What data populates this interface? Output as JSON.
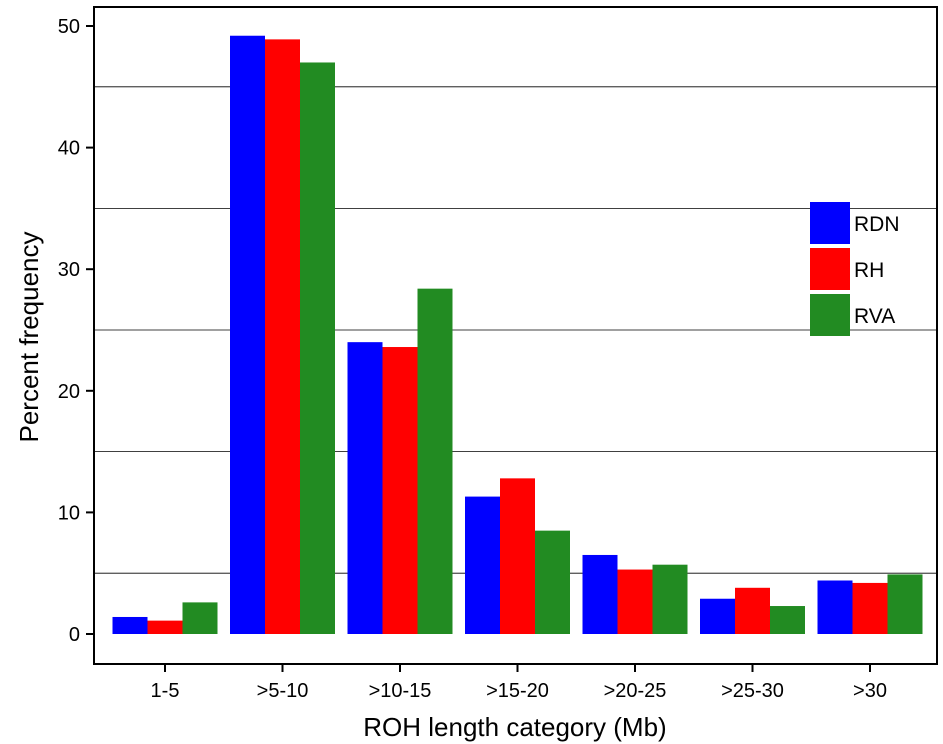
{
  "chart_data": {
    "type": "bar",
    "title": "",
    "xlabel": "ROH length category (Mb)",
    "ylabel": "Percent  frequency",
    "ylim": [
      0,
      50
    ],
    "yticks": [
      0,
      10,
      20,
      30,
      40,
      50
    ],
    "gridlines": [
      5,
      15,
      25,
      35,
      45
    ],
    "categories": [
      "1-5",
      ">5-10",
      ">10-15",
      ">15-20",
      ">20-25",
      ">25-30",
      ">30"
    ],
    "series": [
      {
        "name": "RDN",
        "color": "#0000ff",
        "values": [
          1.4,
          49.2,
          24.0,
          11.3,
          6.5,
          2.9,
          4.4
        ]
      },
      {
        "name": "RH",
        "color": "#ff0000",
        "values": [
          1.1,
          48.9,
          23.6,
          12.8,
          5.3,
          3.8,
          4.2
        ]
      },
      {
        "name": "RVA",
        "color": "#228b22",
        "values": [
          2.6,
          47.0,
          28.4,
          8.5,
          5.7,
          2.3,
          4.9
        ]
      }
    ],
    "legend_position": "right"
  }
}
